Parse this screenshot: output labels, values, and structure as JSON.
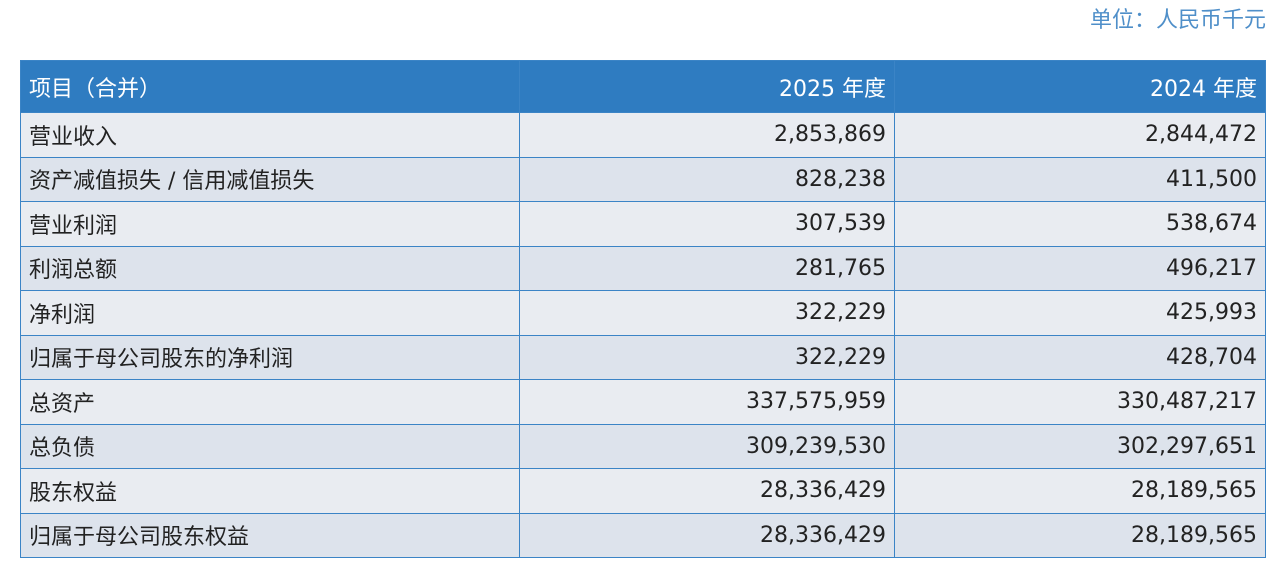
{
  "unit": "单位：人民币千元",
  "table": {
    "header": [
      "项目（合并）",
      "2025 年度",
      "2024 年度"
    ],
    "rows": [
      [
        "营业收入",
        "2,853,869",
        "2,844,472"
      ],
      [
        "资产减值损失 / 信用减值损失",
        "828,238",
        "411,500"
      ],
      [
        "营业利润",
        "307,539",
        "538,674"
      ],
      [
        "利润总额",
        "281,765",
        "496,217"
      ],
      [
        "净利润",
        "322,229",
        "425,993"
      ],
      [
        "归属于母公司股东的净利润",
        "322,229",
        "428,704"
      ],
      [
        "总资产",
        "337,575,959",
        "330,487,217"
      ],
      [
        "总负债",
        "309,239,530",
        "302,297,651"
      ],
      [
        "股东权益",
        "28,336,429",
        "28,189,565"
      ],
      [
        "归属于母公司股东权益",
        "28,336,429",
        "28,189,565"
      ]
    ]
  }
}
